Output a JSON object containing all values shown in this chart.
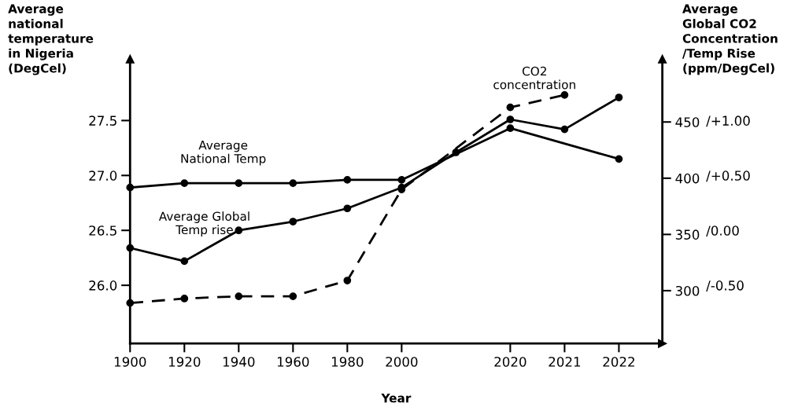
{
  "chart_data": {
    "type": "line",
    "xlabel": "Year",
    "ylabel": "Average\nnational\ntemperature\nin Nigeria\n(DegCel)",
    "y2label": "Average\nGlobal CO2\nConcentration\n/Temp Rise\n(ppm/DegCel)",
    "categories": [
      "1900",
      "1920",
      "1940",
      "1960",
      "1980",
      "2000",
      null,
      "2020",
      "2021",
      "2022"
    ],
    "ylim": [
      25.47,
      28.06
    ],
    "yticks": [
      {
        "value": 26.0,
        "label": "26.0"
      },
      {
        "value": 26.5,
        "label": "26.5"
      },
      {
        "value": 27.0,
        "label": "27.0"
      },
      {
        "value": 27.5,
        "label": "27.5"
      }
    ],
    "y2lim": [
      253,
      506
    ],
    "y2ticks": [
      300,
      350,
      400,
      450
    ],
    "y3lim": [
      -1.03,
      1.56
    ],
    "y3ticks": [
      {
        "value": -0.5,
        "label": "/-0.50"
      },
      {
        "value": 0.0,
        "label": "/0.00"
      },
      {
        "value": 0.5,
        "label": "/+0.50"
      },
      {
        "value": 1.0,
        "label": "/+1.00"
      }
    ],
    "marker": "circle",
    "grid": false,
    "series": [
      {
        "name": "Average\nNational Temp",
        "color": "#000000",
        "line_style": "solid",
        "values": [
          26.89,
          26.93,
          26.93,
          26.93,
          26.96,
          26.96,
          null,
          27.43,
          null,
          27.15
        ]
      },
      {
        "name": "Average Global\nTemp rise",
        "color": "#000000",
        "line_style": "solid",
        "axis": "y3",
        "values": [
          -0.16,
          -0.28,
          0.0,
          0.08,
          0.2,
          0.39,
          0.71,
          1.01,
          0.92,
          1.21
        ]
      },
      {
        "name": "CO2\nconcentration",
        "color": "#000000",
        "line_style": "dashed",
        "axis": "y2",
        "values": [
          289,
          293,
          295,
          295,
          309,
          390,
          null,
          463,
          474,
          null
        ]
      }
    ]
  }
}
